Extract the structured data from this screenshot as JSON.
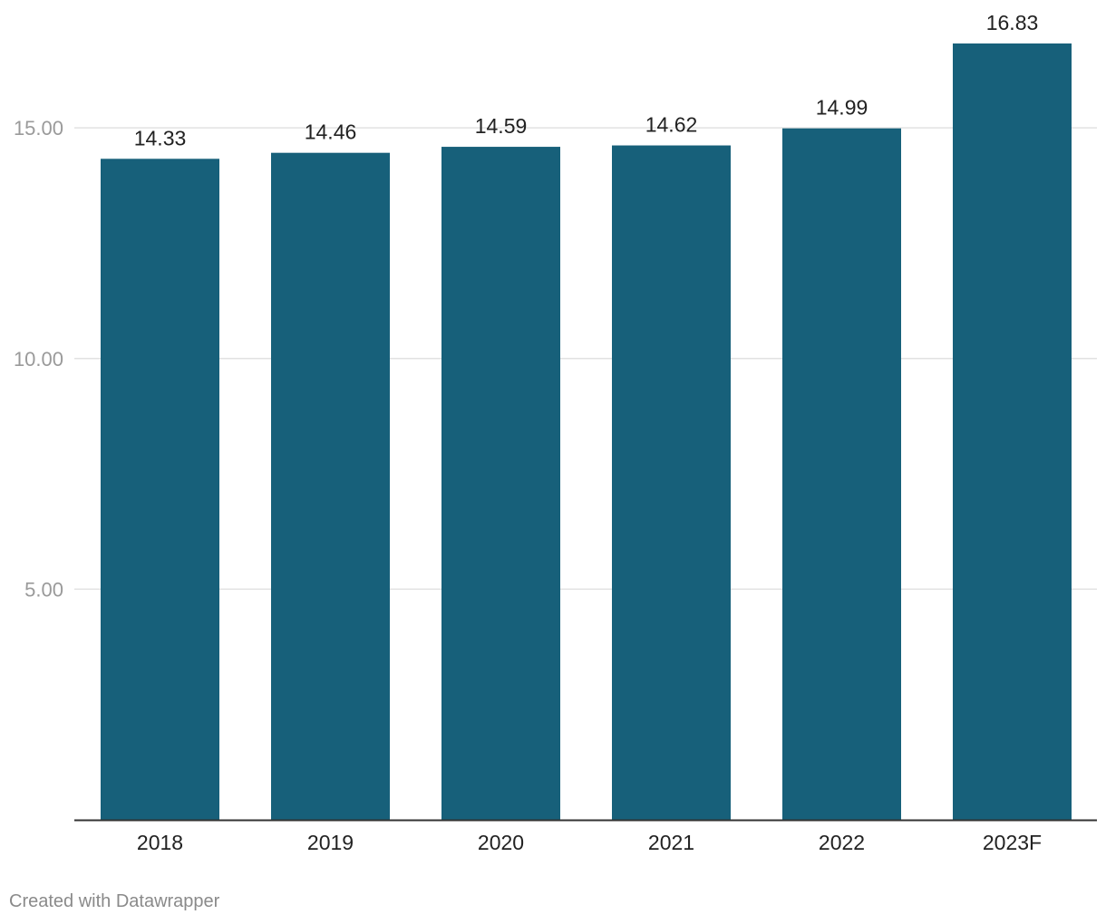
{
  "chart_data": {
    "type": "bar",
    "title": "",
    "xlabel": "",
    "ylabel": "",
    "categories": [
      "2018",
      "2019",
      "2020",
      "2021",
      "2022",
      "2023F"
    ],
    "values": [
      14.33,
      14.46,
      14.59,
      14.62,
      14.99,
      16.83
    ],
    "value_labels": [
      "14.33",
      "14.46",
      "14.59",
      "14.62",
      "14.99",
      "16.83"
    ],
    "y_ticks": [
      5,
      10,
      15
    ],
    "y_tick_labels": [
      "5.00",
      "10.00",
      "15.00"
    ],
    "ylim": [
      0,
      16.83
    ],
    "grid": true,
    "legend": "none"
  },
  "colors": {
    "bar": "#17607a",
    "grid": "#e2e2e2",
    "axis": "#333333",
    "tick_label": "#9a9a9a",
    "label": "#222222"
  },
  "footer": {
    "credit": "Created with Datawrapper"
  }
}
